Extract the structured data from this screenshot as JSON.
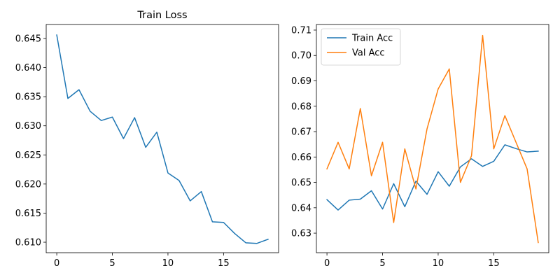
{
  "chart_data": [
    {
      "type": "line",
      "title": "Train Loss",
      "xlabel": "",
      "ylabel": "",
      "xlim": [
        -0.95,
        19.95
      ],
      "ylim": [
        0.6082,
        0.6474
      ],
      "xticks": [
        0,
        5,
        10,
        15
      ],
      "yticks": [
        0.61,
        0.615,
        0.62,
        0.625,
        0.63,
        0.635,
        0.64,
        0.645
      ],
      "ytick_labels": [
        "0.610",
        "0.615",
        "0.620",
        "0.625",
        "0.630",
        "0.635",
        "0.640",
        "0.645"
      ],
      "grid": false,
      "legend": null,
      "x": [
        0,
        1,
        2,
        3,
        4,
        5,
        6,
        7,
        8,
        9,
        10,
        11,
        12,
        13,
        14,
        15,
        16,
        17,
        18,
        19
      ],
      "series": [
        {
          "color": "#1f77b4",
          "values": [
            0.6456,
            0.6347,
            0.6362,
            0.6325,
            0.6309,
            0.6315,
            0.6278,
            0.6314,
            0.6263,
            0.6289,
            0.6219,
            0.6206,
            0.6171,
            0.6187,
            0.6135,
            0.6134,
            0.6115,
            0.6099,
            0.6098,
            0.6105
          ]
        }
      ]
    },
    {
      "type": "line",
      "title": "",
      "xlabel": "",
      "ylabel": "",
      "xlim": [
        -0.95,
        19.95
      ],
      "ylim": [
        0.6223,
        0.7122
      ],
      "xticks": [
        0,
        5,
        10,
        15
      ],
      "yticks": [
        0.63,
        0.64,
        0.65,
        0.66,
        0.67,
        0.68,
        0.69,
        0.7,
        0.71
      ],
      "ytick_labels": [
        "0.63",
        "0.64",
        "0.65",
        "0.66",
        "0.67",
        "0.68",
        "0.69",
        "0.70",
        "0.71"
      ],
      "grid": false,
      "legend": "top-left",
      "x": [
        0,
        1,
        2,
        3,
        4,
        5,
        6,
        7,
        8,
        9,
        10,
        11,
        12,
        13,
        14,
        15,
        16,
        17,
        18,
        19
      ],
      "series": [
        {
          "name": "Train Acc",
          "color": "#1f77b4",
          "values": [
            0.6432,
            0.6391,
            0.643,
            0.6434,
            0.6467,
            0.6395,
            0.6495,
            0.6404,
            0.6505,
            0.6453,
            0.6542,
            0.6485,
            0.6561,
            0.6593,
            0.6563,
            0.6583,
            0.6648,
            0.6633,
            0.662,
            0.6623
          ]
        },
        {
          "name": "Val Acc",
          "color": "#ff7f0e",
          "values": [
            0.6553,
            0.6658,
            0.6553,
            0.6791,
            0.6526,
            0.6658,
            0.6342,
            0.6632,
            0.6474,
            0.6711,
            0.6868,
            0.6947,
            0.65,
            0.6605,
            0.7079,
            0.6632,
            0.6763,
            0.6658,
            0.6553,
            0.6263
          ]
        }
      ]
    }
  ]
}
